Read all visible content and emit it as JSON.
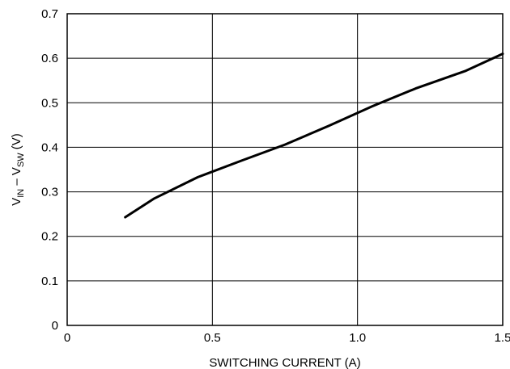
{
  "chart_data": {
    "type": "line",
    "title": "",
    "xlabel": "SWITCHING CURRENT (A)",
    "ylabel": {
      "v1": "V",
      "sub1": "IN",
      "mid": " – V",
      "sub2": "SW",
      "unit": " (V)"
    },
    "xlim": [
      0,
      1.5
    ],
    "ylim": [
      0,
      0.7
    ],
    "grid": true,
    "legend": "none",
    "x_ticks": [
      {
        "value": 0,
        "label": "0"
      },
      {
        "value": 0.5,
        "label": "0.5"
      },
      {
        "value": 1.0,
        "label": "1.0"
      },
      {
        "value": 1.5,
        "label": "1.5"
      }
    ],
    "y_ticks": [
      {
        "value": 0,
        "label": "0"
      },
      {
        "value": 0.1,
        "label": "0.1"
      },
      {
        "value": 0.2,
        "label": "0.2"
      },
      {
        "value": 0.3,
        "label": "0.3"
      },
      {
        "value": 0.4,
        "label": "0.4"
      },
      {
        "value": 0.5,
        "label": "0.5"
      },
      {
        "value": 0.6,
        "label": "0.6"
      },
      {
        "value": 0.7,
        "label": "0.7"
      }
    ],
    "series": [
      {
        "color": "#000000",
        "x": [
          0.2,
          0.3,
          0.45,
          0.6,
          0.75,
          0.9,
          1.05,
          1.2,
          1.37,
          1.5
        ],
        "y": [
          0.243,
          0.285,
          0.333,
          0.37,
          0.406,
          0.448,
          0.492,
          0.532,
          0.571,
          0.61
        ]
      }
    ]
  }
}
